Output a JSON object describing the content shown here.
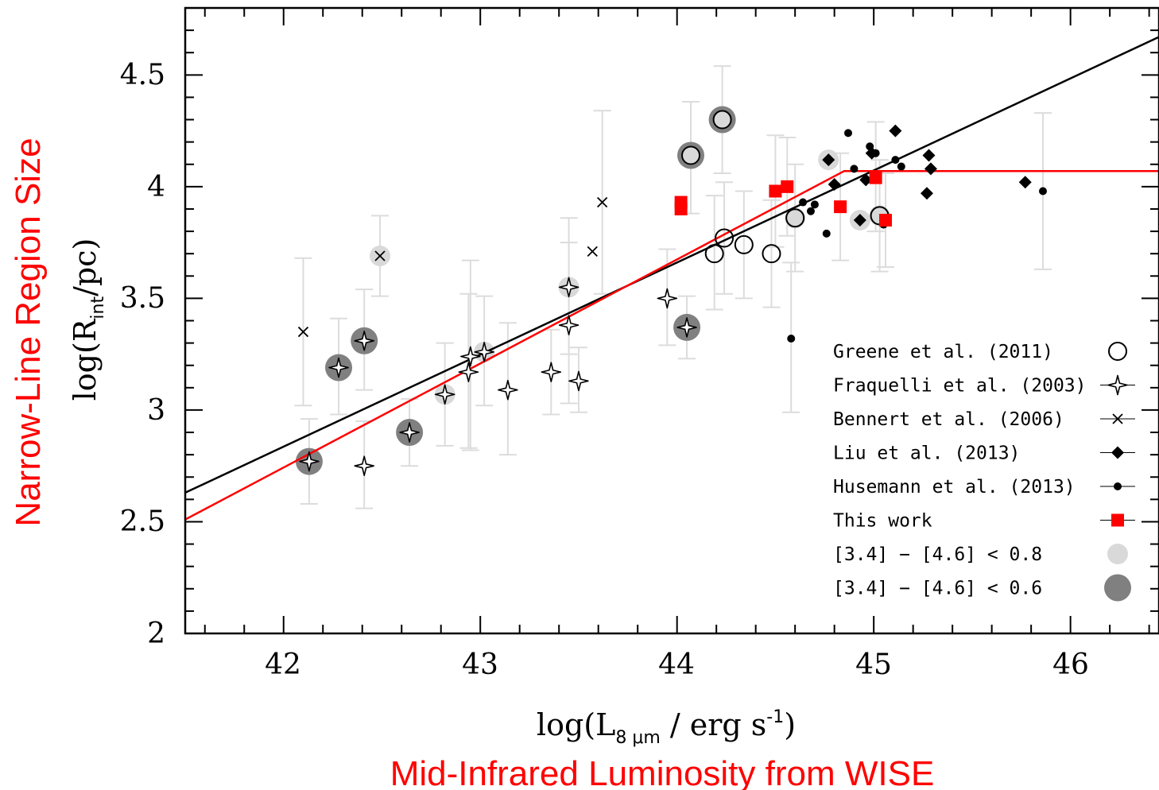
{
  "chart_data": {
    "type": "scatter",
    "xlabel": "log(L",
    "xlabel_sub": "8 μm",
    "xlabel_rest": " / erg  s",
    "xlabel_sup": "-1",
    "xlabel_end": ")",
    "ylabel": "log(R",
    "ylabel_sub": "int",
    "ylabel_rest": "/pc)",
    "xlabel_red": "Mid-Infrared Luminosity from WISE",
    "ylabel_red": "Narrow-Line Region Size",
    "xlim": [
      41.5,
      46.45
    ],
    "ylim": [
      2.0,
      4.8
    ],
    "xticks": [
      "42",
      "43",
      "44",
      "45",
      "46"
    ],
    "yticks": [
      "2",
      "2.5",
      "3",
      "3.5",
      "4",
      "4.5"
    ],
    "colors": {
      "black": "#000000",
      "red": "#ff0000",
      "error_bar": "#dcdcdc",
      "light_halo": "#d9d9d9",
      "dark_halo": "#808080"
    },
    "legend_placement": "lower-right",
    "legend": [
      {
        "label": "Greene et al. (2011)",
        "marker": "open-circle"
      },
      {
        "label": "Fraquelli et al. (2003)",
        "marker": "open-star"
      },
      {
        "label": "Bennert et al. (2006)",
        "marker": "cross"
      },
      {
        "label": "Liu et al. (2013)",
        "marker": "diamond"
      },
      {
        "label": "Husemann et al. (2013)",
        "marker": "dot"
      },
      {
        "label": "This work",
        "marker": "red-square"
      },
      {
        "label": "[3.4] − [4.6] < 0.8",
        "marker": "light-halo"
      },
      {
        "label": "[3.4] − [4.6] < 0.6",
        "marker": "dark-halo"
      }
    ],
    "fits": [
      {
        "name": "linear",
        "color": "#000000",
        "x": [
          41.5,
          46.45
        ],
        "y": [
          2.63,
          4.67
        ]
      },
      {
        "name": "broken",
        "color": "#ff0000",
        "x": [
          41.5,
          44.85,
          46.45
        ],
        "y": [
          2.51,
          4.07,
          4.07
        ]
      }
    ],
    "series": [
      {
        "marker": "open-circle",
        "points": [
          {
            "x": 44.07,
            "y": 4.14,
            "halo": "dark",
            "err": [
              3.88,
              4.38
            ]
          },
          {
            "x": 44.23,
            "y": 4.3,
            "halo": "dark",
            "err": [
              4.06,
              4.54
            ]
          },
          {
            "x": 44.19,
            "y": 3.7,
            "err": [
              3.45,
              3.96
            ]
          },
          {
            "x": 44.24,
            "y": 3.77,
            "err": [
              3.52,
              4.02
            ]
          },
          {
            "x": 44.34,
            "y": 3.74,
            "err": [
              3.5,
              3.98
            ]
          },
          {
            "x": 44.48,
            "y": 3.7,
            "err": [
              3.46,
              3.94
            ]
          },
          {
            "x": 44.6,
            "y": 3.86,
            "halo": "light",
            "err": [
              3.62,
              4.1
            ]
          },
          {
            "x": 45.03,
            "y": 3.87,
            "halo": "light",
            "err": [
              3.62,
              4.12
            ]
          }
        ]
      },
      {
        "marker": "open-star",
        "points": [
          {
            "x": 42.13,
            "y": 2.77,
            "halo": "dark",
            "err": [
              2.58,
              2.96
            ]
          },
          {
            "x": 42.28,
            "y": 3.19,
            "halo": "dark",
            "err": [
              2.98,
              3.41
            ]
          },
          {
            "x": 42.41,
            "y": 3.31,
            "halo": "dark",
            "err": [
              3.09,
              3.54
            ]
          },
          {
            "x": 42.41,
            "y": 2.75,
            "err": [
              2.56,
              2.95
            ]
          },
          {
            "x": 42.64,
            "y": 2.9,
            "halo": "dark",
            "err": [
              2.75,
              3.05
            ]
          },
          {
            "x": 42.82,
            "y": 3.07,
            "halo": "light",
            "err": [
              2.84,
              3.3
            ]
          },
          {
            "x": 42.94,
            "y": 3.17,
            "err": [
              2.83,
              3.52
            ]
          },
          {
            "x": 42.95,
            "y": 3.24,
            "err": [
              2.82,
              3.67
            ]
          },
          {
            "x": 43.02,
            "y": 3.26,
            "halo": "light",
            "err": [
              3.02,
              3.51
            ]
          },
          {
            "x": 43.14,
            "y": 3.09,
            "err": [
              2.8,
              3.39
            ]
          },
          {
            "x": 43.36,
            "y": 3.17,
            "err": [
              2.98,
              3.36
            ]
          },
          {
            "x": 43.45,
            "y": 3.38,
            "err": [
              3.03,
              3.75
            ]
          },
          {
            "x": 43.45,
            "y": 3.55,
            "halo": "light",
            "err": [
              3.25,
              3.86
            ]
          },
          {
            "x": 43.5,
            "y": 3.13,
            "err": [
              2.99,
              3.28
            ]
          },
          {
            "x": 43.95,
            "y": 3.5,
            "err": [
              3.29,
              3.72
            ]
          },
          {
            "x": 44.05,
            "y": 3.37,
            "halo": "dark",
            "err": [
              3.23,
              3.51
            ]
          }
        ]
      },
      {
        "marker": "cross",
        "points": [
          {
            "x": 42.1,
            "y": 3.35,
            "err": [
              3.02,
              3.68
            ]
          },
          {
            "x": 42.49,
            "y": 3.69,
            "halo": "light",
            "err": [
              3.51,
              3.87
            ]
          },
          {
            "x": 43.57,
            "y": 3.71
          },
          {
            "x": 43.62,
            "y": 3.93,
            "err": [
              3.52,
              4.34
            ]
          }
        ]
      },
      {
        "marker": "diamond",
        "points": [
          {
            "x": 44.77,
            "y": 4.12,
            "halo": "light"
          },
          {
            "x": 44.8,
            "y": 4.01
          },
          {
            "x": 44.93,
            "y": 3.85,
            "halo": "light"
          },
          {
            "x": 44.96,
            "y": 4.03
          },
          {
            "x": 44.99,
            "y": 4.15
          },
          {
            "x": 45.11,
            "y": 4.25
          },
          {
            "x": 45.28,
            "y": 4.14
          },
          {
            "x": 45.29,
            "y": 4.08
          },
          {
            "x": 45.27,
            "y": 3.97
          },
          {
            "x": 45.77,
            "y": 4.02
          }
        ]
      },
      {
        "marker": "dot",
        "points": [
          {
            "x": 44.58,
            "y": 3.32,
            "err": [
              2.99,
              3.66
            ]
          },
          {
            "x": 44.64,
            "y": 3.93
          },
          {
            "x": 44.68,
            "y": 3.89
          },
          {
            "x": 44.7,
            "y": 3.92
          },
          {
            "x": 44.76,
            "y": 3.79
          },
          {
            "x": 44.87,
            "y": 4.24
          },
          {
            "x": 44.9,
            "y": 4.08
          },
          {
            "x": 44.98,
            "y": 4.18
          },
          {
            "x": 45.01,
            "y": 4.15
          },
          {
            "x": 45.05,
            "y": 3.83
          },
          {
            "x": 45.11,
            "y": 4.12
          },
          {
            "x": 45.14,
            "y": 4.09
          },
          {
            "x": 45.86,
            "y": 3.98,
            "err": [
              3.63,
              4.33
            ]
          }
        ]
      },
      {
        "marker": "red-square",
        "points": [
          {
            "x": 44.02,
            "y": 3.9
          },
          {
            "x": 44.02,
            "y": 3.93
          },
          {
            "x": 44.5,
            "y": 3.98,
            "err": [
              3.73,
              4.23
            ]
          },
          {
            "x": 44.56,
            "y": 4.0,
            "err": [
              3.78,
              4.22
            ]
          },
          {
            "x": 44.83,
            "y": 3.91,
            "err": [
              3.67,
              4.15
            ]
          },
          {
            "x": 45.01,
            "y": 4.04,
            "err": [
              3.8,
              4.29
            ]
          },
          {
            "x": 45.06,
            "y": 3.85,
            "err": [
              3.64,
              4.06
            ]
          }
        ]
      }
    ]
  }
}
